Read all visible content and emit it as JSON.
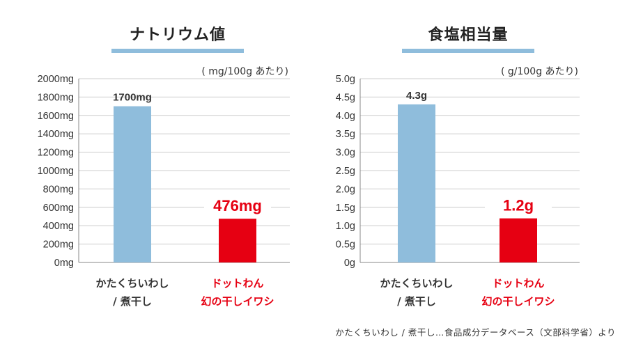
{
  "colors": {
    "blue": "#8fbddc",
    "red": "#e60012",
    "title_underline": "#8fbddc",
    "grid": "#cccccc",
    "axis": "#888888",
    "text": "#333333"
  },
  "chart_data": [
    {
      "type": "bar",
      "title": "ナトリウム値",
      "unit_note": "( mg/100g あたり)",
      "yticks": [
        "0mg",
        "200mg",
        "400mg",
        "600mg",
        "800mg",
        "1000mg",
        "1200mg",
        "1400mg",
        "1600mg",
        "1800mg",
        "2000mg"
      ],
      "ylim": [
        0,
        2000
      ],
      "categories": [
        {
          "line1": "かたくちいわし",
          "line2": "/ 煮干し",
          "color": "blue"
        },
        {
          "line1": "ドットわん",
          "line2": "幻の干しイワシ",
          "color": "red"
        }
      ],
      "values": [
        1700,
        476
      ],
      "value_labels": [
        "1700mg",
        "476mg"
      ]
    },
    {
      "type": "bar",
      "title": "食塩相当量",
      "unit_note": "( g/100g あたり)",
      "yticks": [
        "0g",
        "0.5g",
        "1.0g",
        "1.5g",
        "2.0g",
        "2.5g",
        "3.0g",
        "3.5g",
        "4.0g",
        "4.5g",
        "5.0g"
      ],
      "ylim": [
        0,
        5
      ],
      "categories": [
        {
          "line1": "かたくちいわし",
          "line2": "/ 煮干し",
          "color": "blue"
        },
        {
          "line1": "ドットわん",
          "line2": "幻の干しイワシ",
          "color": "red"
        }
      ],
      "values": [
        4.3,
        1.2
      ],
      "value_labels": [
        "4.3g",
        "1.2g"
      ]
    }
  ],
  "source_note": "かたくちいわし / 煮干し…食品成分データベース（文部科学省）より"
}
